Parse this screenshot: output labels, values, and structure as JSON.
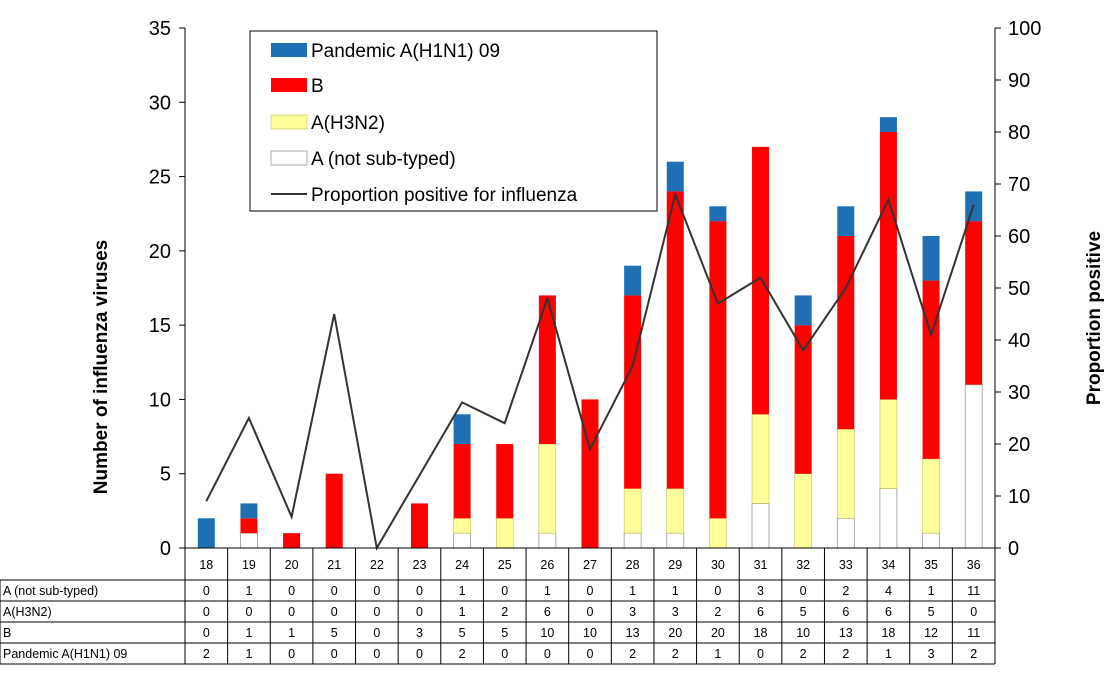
{
  "chart_data": {
    "type": "bar",
    "stacked": true,
    "categories": [
      "18",
      "19",
      "20",
      "21",
      "22",
      "23",
      "24",
      "25",
      "26",
      "27",
      "28",
      "29",
      "30",
      "31",
      "32",
      "33",
      "34",
      "35",
      "36"
    ],
    "series": [
      {
        "name": "A (not sub-typed)",
        "color": "#ffffff",
        "values": [
          0,
          1,
          0,
          0,
          0,
          0,
          1,
          0,
          1,
          0,
          1,
          1,
          0,
          3,
          0,
          2,
          4,
          1,
          11
        ]
      },
      {
        "name": "A(H3N2)",
        "color": "#ffff99",
        "values": [
          0,
          0,
          0,
          0,
          0,
          0,
          1,
          2,
          6,
          0,
          3,
          3,
          2,
          6,
          5,
          6,
          6,
          5,
          0
        ]
      },
      {
        "name": "B",
        "color": "#ff0000",
        "values": [
          0,
          1,
          1,
          5,
          0,
          3,
          5,
          5,
          10,
          10,
          13,
          20,
          20,
          18,
          10,
          13,
          18,
          12,
          11
        ]
      },
      {
        "name": "Pandemic A(H1N1) 09",
        "color": "#1f6fb4",
        "values": [
          2,
          1,
          0,
          0,
          0,
          0,
          2,
          0,
          0,
          0,
          2,
          2,
          1,
          0,
          2,
          2,
          1,
          3,
          2
        ]
      }
    ],
    "line": {
      "name": "Proportion positive for influenza",
      "color": "#333333",
      "axis": "right",
      "values": [
        9,
        25,
        6,
        45,
        0,
        14,
        28,
        24,
        48,
        19,
        35,
        68,
        47,
        52,
        38,
        50,
        67,
        41,
        66
      ]
    },
    "ylabel": "Number of influenza viruses",
    "y2label": "Proportion positive",
    "ylim": [
      0,
      35
    ],
    "y2lim": [
      0,
      100
    ],
    "yticks": [
      0,
      5,
      10,
      15,
      20,
      25,
      30,
      35
    ],
    "y2ticks": [
      0,
      10,
      20,
      30,
      40,
      50,
      60,
      70,
      80,
      90,
      100
    ],
    "legend_order": [
      "Pandemic A(H1N1) 09",
      "B",
      "A(H3N2)",
      "A (not sub-typed)",
      "Proportion positive for influenza"
    ],
    "legend_position": "top-left",
    "grid": false
  }
}
